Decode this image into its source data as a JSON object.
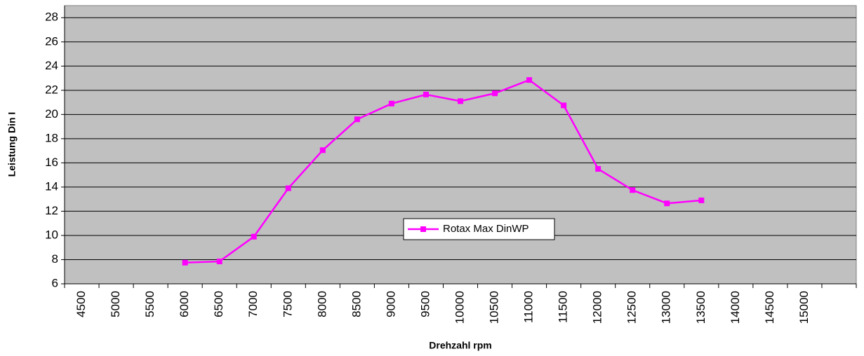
{
  "chart_data": {
    "type": "line",
    "x_label": "Drehzahl rpm",
    "y_label": "Leistung Din I",
    "categories": [
      "4500",
      "5000",
      "5500",
      "6000",
      "6500",
      "7000",
      "7500",
      "8000",
      "8500",
      "9000",
      "9500",
      "10000",
      "10500",
      "11000",
      "11500",
      "12000",
      "12500",
      "13000",
      "13500",
      "14000",
      "14500",
      "15000",
      null
    ],
    "series": [
      {
        "name": "Rotax Max DinWP",
        "color": "#ff00ff",
        "values": [
          null,
          null,
          null,
          7.75,
          7.85,
          9.9,
          13.9,
          17.05,
          19.6,
          20.9,
          21.65,
          21.1,
          21.75,
          22.85,
          20.75,
          15.5,
          13.75,
          12.65,
          12.9,
          null,
          null,
          null,
          null
        ]
      }
    ],
    "ylim": [
      6,
      29
    ],
    "yticks": [
      6,
      8,
      10,
      12,
      14,
      16,
      18,
      20,
      22,
      24,
      26,
      28
    ],
    "grid": true,
    "legend": "center"
  }
}
